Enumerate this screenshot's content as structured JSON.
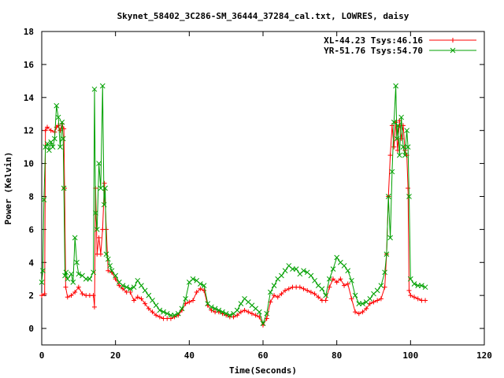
{
  "chart_data": {
    "type": "line",
    "title": "Skynet_58402_3C286-SM_36444_37284_cal.txt, LOWRES, daisy",
    "xlabel": "Time(Seconds)",
    "ylabel": "Power (Kelvin)",
    "xlim": [
      0,
      120
    ],
    "ylim": [
      -1,
      18
    ],
    "xticks": [
      0,
      20,
      40,
      60,
      80,
      100,
      120
    ],
    "yticks": [
      0,
      2,
      4,
      6,
      8,
      10,
      12,
      14,
      16,
      18
    ],
    "grid": false,
    "legend_position": "top-right",
    "series": [
      {
        "name": "XL-44.23 Tsys:46.16",
        "color": "#ff0000",
        "marker": "plus",
        "x": [
          0.0,
          0.8,
          1.0,
          1.5,
          2.5,
          3.5,
          4.0,
          4.5,
          5.0,
          5.5,
          6.0,
          6.2,
          6.5,
          7.0,
          8.0,
          9.0,
          10.0,
          11.0,
          12.0,
          13.0,
          14.0,
          14.3,
          14.6,
          15.0,
          15.5,
          16.0,
          16.5,
          17.0,
          17.5,
          18.0,
          19.0,
          20.0,
          21.0,
          22.0,
          23.0,
          24.0,
          25.0,
          26.0,
          27.0,
          28.0,
          29.0,
          30.0,
          31.0,
          32.0,
          33.0,
          34.0,
          35.0,
          36.0,
          37.0,
          38.0,
          39.0,
          40.0,
          41.0,
          42.0,
          43.0,
          44.0,
          45.0,
          46.0,
          47.0,
          48.0,
          49.0,
          50.0,
          51.0,
          52.0,
          53.0,
          54.0,
          55.0,
          56.0,
          57.0,
          58.0,
          59.0,
          60.0,
          61.0,
          62.0,
          63.0,
          64.0,
          65.0,
          66.0,
          67.0,
          68.0,
          69.0,
          70.0,
          71.0,
          72.0,
          73.0,
          74.0,
          75.0,
          76.0,
          77.0,
          78.0,
          79.0,
          80.0,
          81.0,
          82.0,
          83.0,
          84.0,
          85.0,
          86.0,
          87.0,
          88.0,
          89.0,
          90.0,
          91.0,
          92.0,
          93.0,
          93.5,
          94.0,
          94.5,
          95.0,
          95.5,
          96.0,
          96.5,
          97.0,
          97.5,
          98.0,
          98.5,
          99.0,
          99.3,
          99.6,
          100.0,
          101.0,
          102.0,
          103.0,
          104.0
        ],
        "y": [
          2.0,
          2.1,
          12.0,
          12.2,
          12.0,
          11.9,
          12.2,
          12.3,
          12.0,
          12.4,
          12.1,
          8.5,
          2.5,
          1.9,
          2.0,
          2.2,
          2.5,
          2.1,
          2.0,
          2.0,
          2.0,
          1.3,
          8.5,
          4.5,
          5.5,
          4.5,
          6.0,
          8.8,
          6.0,
          3.5,
          3.4,
          3.0,
          2.6,
          2.4,
          2.2,
          2.2,
          1.7,
          1.9,
          1.8,
          1.5,
          1.2,
          1.0,
          0.8,
          0.7,
          0.6,
          0.6,
          0.6,
          0.7,
          0.8,
          1.1,
          1.5,
          1.6,
          1.7,
          2.2,
          2.4,
          2.3,
          1.4,
          1.1,
          1.0,
          1.0,
          0.9,
          0.8,
          0.7,
          0.7,
          0.8,
          1.0,
          1.1,
          1.0,
          0.9,
          0.8,
          0.7,
          0.2,
          0.6,
          1.6,
          2.0,
          1.9,
          2.1,
          2.3,
          2.4,
          2.5,
          2.5,
          2.5,
          2.4,
          2.3,
          2.2,
          2.1,
          1.9,
          1.7,
          1.7,
          2.5,
          3.0,
          2.8,
          3.0,
          2.6,
          2.7,
          1.8,
          1.0,
          0.9,
          1.0,
          1.2,
          1.5,
          1.6,
          1.7,
          1.8,
          2.5,
          4.5,
          8.0,
          10.5,
          12.3,
          11.0,
          12.5,
          10.8,
          12.6,
          11.5,
          12.3,
          10.8,
          10.5,
          8.5,
          2.3,
          2.0,
          1.9,
          1.8,
          1.7,
          1.7
        ]
      },
      {
        "name": "YR-51.76 Tsys:54.70",
        "color": "#00a000",
        "marker": "cross",
        "x": [
          0.0,
          0.3,
          0.6,
          1.0,
          1.5,
          2.0,
          2.5,
          3.0,
          3.5,
          4.0,
          4.5,
          5.0,
          5.5,
          5.8,
          6.0,
          6.3,
          6.6,
          7.0,
          8.0,
          8.5,
          9.0,
          9.5,
          10.0,
          11.0,
          12.0,
          13.0,
          14.0,
          14.3,
          14.6,
          15.0,
          15.5,
          16.0,
          16.5,
          16.9,
          17.2,
          17.5,
          18.0,
          18.5,
          19.0,
          20.0,
          21.0,
          22.0,
          23.0,
          24.0,
          25.0,
          26.0,
          27.0,
          28.0,
          29.0,
          30.0,
          31.0,
          32.0,
          33.0,
          34.0,
          35.0,
          36.0,
          37.0,
          38.0,
          39.0,
          40.0,
          41.0,
          42.0,
          43.0,
          44.0,
          45.0,
          46.0,
          47.0,
          48.0,
          49.0,
          50.0,
          51.0,
          52.0,
          53.0,
          54.0,
          55.0,
          56.0,
          57.0,
          58.0,
          59.0,
          60.0,
          61.0,
          62.0,
          63.0,
          64.0,
          65.0,
          66.0,
          67.0,
          68.0,
          69.0,
          70.0,
          71.0,
          72.0,
          73.0,
          74.0,
          75.0,
          76.0,
          77.0,
          78.0,
          79.0,
          80.0,
          81.0,
          82.0,
          83.0,
          84.0,
          85.0,
          86.0,
          87.0,
          88.0,
          89.0,
          90.0,
          91.0,
          92.0,
          93.0,
          93.5,
          94.0,
          94.5,
          95.0,
          95.5,
          96.0,
          96.3,
          96.6,
          97.0,
          97.5,
          98.0,
          98.5,
          99.0,
          99.3,
          99.6,
          100.0,
          101.0,
          102.0,
          103.0,
          104.0
        ],
        "y": [
          2.8,
          3.5,
          7.8,
          11.0,
          11.2,
          10.8,
          11.3,
          11.0,
          11.5,
          13.5,
          12.8,
          11.0,
          12.5,
          11.5,
          8.5,
          3.2,
          3.4,
          3.0,
          3.3,
          2.8,
          5.5,
          4.0,
          3.3,
          3.2,
          3.0,
          3.0,
          3.4,
          14.5,
          7.0,
          6.0,
          10.0,
          8.5,
          14.7,
          7.5,
          8.5,
          4.5,
          4.2,
          3.8,
          3.5,
          3.2,
          2.8,
          2.6,
          2.5,
          2.4,
          2.5,
          2.9,
          2.6,
          2.3,
          2.0,
          1.7,
          1.4,
          1.1,
          1.0,
          0.9,
          0.8,
          0.8,
          0.9,
          1.2,
          1.8,
          2.8,
          3.0,
          2.9,
          2.7,
          2.6,
          1.5,
          1.3,
          1.2,
          1.1,
          1.0,
          0.9,
          0.8,
          0.9,
          1.1,
          1.5,
          1.8,
          1.6,
          1.4,
          1.2,
          1.0,
          0.3,
          0.9,
          2.2,
          2.6,
          3.0,
          3.2,
          3.5,
          3.8,
          3.6,
          3.6,
          3.3,
          3.5,
          3.4,
          3.2,
          2.9,
          2.6,
          2.4,
          2.0,
          3.0,
          3.6,
          4.3,
          4.0,
          3.8,
          3.5,
          2.9,
          2.0,
          1.5,
          1.5,
          1.6,
          1.8,
          2.1,
          2.3,
          2.6,
          3.4,
          4.5,
          8.0,
          5.5,
          9.5,
          12.5,
          14.7,
          11.5,
          12.3,
          10.5,
          12.8,
          11.0,
          10.5,
          12.0,
          11.0,
          8.0,
          3.0,
          2.7,
          2.6,
          2.6,
          2.5
        ]
      }
    ]
  }
}
